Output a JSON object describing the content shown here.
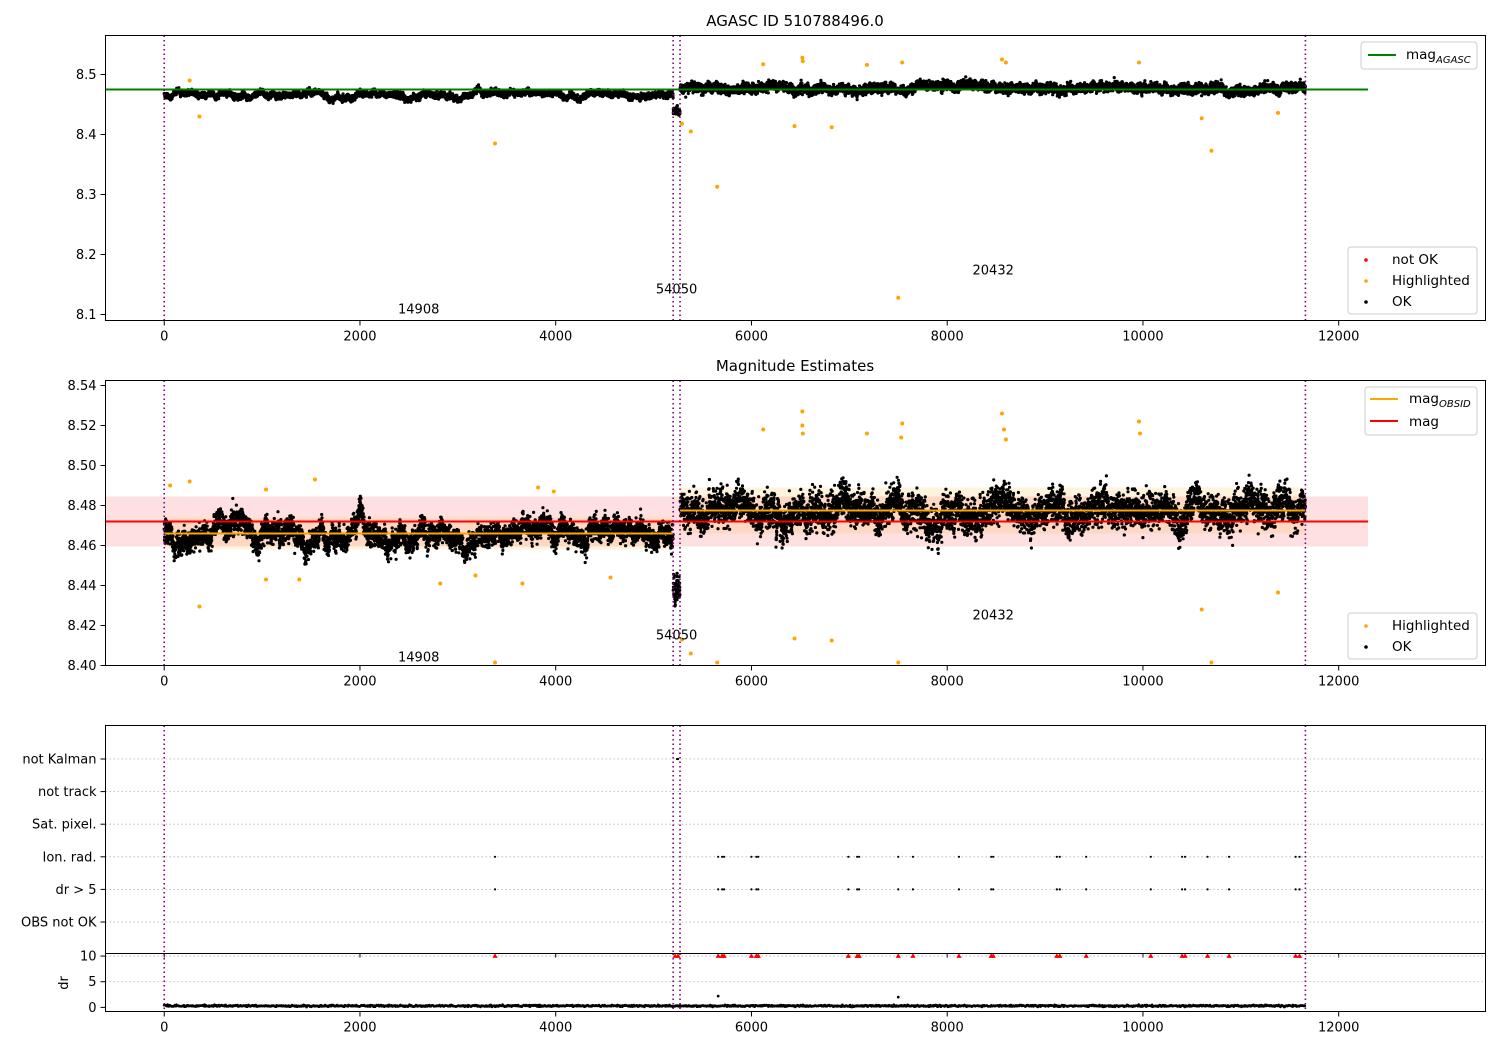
{
  "chart_data": [
    {
      "type": "scatter",
      "title": "AGASC ID 510788496.0",
      "xlim": [
        -600,
        13500
      ],
      "ylim": [
        8.09,
        8.565
      ],
      "xticks": [
        0,
        2000,
        4000,
        6000,
        8000,
        10000,
        12000
      ],
      "yticks": [
        8.1,
        8.2,
        8.3,
        8.4,
        8.5
      ],
      "ytick_decimals": 1,
      "grid": false,
      "legends": [
        {
          "placement": "top-right",
          "entries": [
            {
              "label": "mag",
              "sub": "AGASC",
              "kind": "line",
              "color": "#008000"
            }
          ]
        },
        {
          "placement": "bottom-right",
          "entries": [
            {
              "label": "not OK",
              "kind": "marker",
              "color": "#ff0000"
            },
            {
              "label": "Highlighted",
              "kind": "marker",
              "color": "#ffa500"
            },
            {
              "label": "OK",
              "kind": "marker",
              "color": "#000000"
            }
          ]
        }
      ],
      "reference_lines": [
        {
          "name": "mag_AGASC",
          "y": 8.475,
          "x": [
            -600,
            12300
          ],
          "color": "#008000"
        }
      ],
      "observation_boundaries": [
        0,
        5200,
        5270,
        11660
      ],
      "observations": [
        {
          "obsid": "14908",
          "x_range": [
            0,
            5200
          ],
          "mean": 8.466,
          "spread": 0.006,
          "label_at": [
            2600,
            8.11
          ]
        },
        {
          "obsid": "54050",
          "x_range": [
            5200,
            5270
          ],
          "mean": 8.44,
          "spread": 0.008,
          "label_at": [
            5235,
            8.143
          ]
        },
        {
          "obsid": "20432",
          "x_range": [
            5270,
            11660
          ],
          "mean": 8.477,
          "spread": 0.01,
          "label_at": [
            8470,
            8.175
          ]
        }
      ],
      "highlighted_points": [
        {
          "x": 360,
          "y": 8.43
        },
        {
          "x": 3380,
          "y": 8.385
        },
        {
          "x": 5290,
          "y": 8.418
        },
        {
          "x": 5380,
          "y": 8.405
        },
        {
          "x": 5650,
          "y": 8.313
        },
        {
          "x": 6440,
          "y": 8.414
        },
        {
          "x": 6820,
          "y": 8.412
        },
        {
          "x": 7500,
          "y": 8.128
        },
        {
          "x": 10600,
          "y": 8.427
        },
        {
          "x": 10700,
          "y": 8.373
        },
        {
          "x": 11380,
          "y": 8.436
        },
        {
          "x": 6520,
          "y": 8.528
        },
        {
          "x": 6525,
          "y": 8.522
        },
        {
          "x": 7540,
          "y": 8.52
        },
        {
          "x": 8560,
          "y": 8.525
        },
        {
          "x": 8600,
          "y": 8.52
        },
        {
          "x": 9960,
          "y": 8.52
        },
        {
          "x": 6120,
          "y": 8.517
        },
        {
          "x": 7180,
          "y": 8.516
        },
        {
          "x": 260,
          "y": 8.49
        }
      ]
    },
    {
      "type": "scatter",
      "title": "Magnitude Estimates",
      "xlim": [
        -600,
        13500
      ],
      "ylim": [
        8.4,
        8.5425
      ],
      "xticks": [
        0,
        2000,
        4000,
        6000,
        8000,
        10000,
        12000
      ],
      "yticks": [
        8.4,
        8.42,
        8.44,
        8.46,
        8.48,
        8.5,
        8.52,
        8.54
      ],
      "ytick_decimals": 2,
      "grid": false,
      "legends": [
        {
          "placement": "top-right",
          "entries": [
            {
              "label": "mag",
              "sub": "OBSID",
              "kind": "line",
              "color": "#ffa500"
            },
            {
              "label": "mag",
              "kind": "line",
              "color": "#ff0000"
            }
          ]
        },
        {
          "placement": "bottom-right",
          "entries": [
            {
              "label": "Highlighted",
              "kind": "marker",
              "color": "#ffa500"
            },
            {
              "label": "OK",
              "kind": "marker",
              "color": "#000000"
            }
          ]
        }
      ],
      "reference_lines": [
        {
          "name": "mag",
          "y": 8.472,
          "x": [
            -600,
            12300
          ],
          "color": "#ff0000",
          "band": [
            8.4595,
            8.4845
          ]
        },
        {
          "name": "mag_OBSID 14908",
          "y": 8.466,
          "x": [
            0,
            5200
          ],
          "color": "#ffa500",
          "band": [
            8.458,
            8.474
          ]
        },
        {
          "name": "mag_OBSID 20432",
          "y": 8.4775,
          "x": [
            5270,
            11660
          ],
          "color": "#ffa500",
          "band": [
            8.466,
            8.489
          ]
        }
      ],
      "observation_boundaries": [
        0,
        5200,
        5270,
        11660
      ],
      "observations": [
        {
          "obsid": "14908",
          "x_range": [
            0,
            5200
          ],
          "mean": 8.466,
          "spread": 0.007,
          "label_at": [
            2600,
            8.4045
          ]
        },
        {
          "obsid": "54050",
          "x_range": [
            5200,
            5270
          ],
          "mean": 8.44,
          "spread": 0.009,
          "label_at": [
            5235,
            8.4155
          ]
        },
        {
          "obsid": "20432",
          "x_range": [
            5270,
            11660
          ],
          "mean": 8.477,
          "spread": 0.011,
          "label_at": [
            8470,
            8.4255
          ]
        }
      ],
      "highlighted_points": [
        {
          "x": 360,
          "y": 8.4295
        },
        {
          "x": 5290,
          "y": 8.413
        },
        {
          "x": 5380,
          "y": 8.406
        },
        {
          "x": 6440,
          "y": 8.4135
        },
        {
          "x": 6820,
          "y": 8.4125
        },
        {
          "x": 10600,
          "y": 8.428
        },
        {
          "x": 11380,
          "y": 8.4365
        },
        {
          "x": 3380,
          "y": 8.4015
        },
        {
          "x": 5650,
          "y": 8.4015
        },
        {
          "x": 7500,
          "y": 8.4015
        },
        {
          "x": 10700,
          "y": 8.4015
        },
        {
          "x": 6520,
          "y": 8.527
        },
        {
          "x": 6520,
          "y": 8.52
        },
        {
          "x": 6525,
          "y": 8.516
        },
        {
          "x": 7540,
          "y": 8.521
        },
        {
          "x": 7530,
          "y": 8.514
        },
        {
          "x": 8560,
          "y": 8.526
        },
        {
          "x": 8580,
          "y": 8.518
        },
        {
          "x": 8600,
          "y": 8.513
        },
        {
          "x": 9960,
          "y": 8.522
        },
        {
          "x": 9970,
          "y": 8.516
        },
        {
          "x": 6120,
          "y": 8.518
        },
        {
          "x": 7180,
          "y": 8.516
        },
        {
          "x": 60,
          "y": 8.49
        },
        {
          "x": 260,
          "y": 8.492
        },
        {
          "x": 1040,
          "y": 8.488
        },
        {
          "x": 1540,
          "y": 8.493
        },
        {
          "x": 1040,
          "y": 8.443
        },
        {
          "x": 1380,
          "y": 8.443
        },
        {
          "x": 2820,
          "y": 8.441
        },
        {
          "x": 3660,
          "y": 8.441
        },
        {
          "x": 4560,
          "y": 8.444
        },
        {
          "x": 3180,
          "y": 8.445
        },
        {
          "x": 3820,
          "y": 8.489
        },
        {
          "x": 3980,
          "y": 8.487
        }
      ]
    },
    {
      "type": "scatter",
      "title": "",
      "xlim": [
        -600,
        13500
      ],
      "categories": [
        "not Kalman",
        "not track",
        "Sat. pixel.",
        "Ion. rad.",
        "dr > 5",
        "OBS not OK"
      ],
      "flag_events": {
        "not Kalman": [
          5240,
          5250
        ],
        "not track": [],
        "Sat. pixel.": [],
        "Ion. rad.": [
          3380,
          5660,
          5700,
          5720,
          6000,
          6050,
          6070,
          6990,
          7080,
          7100,
          7500,
          7650,
          8120,
          8450,
          8470,
          9120,
          9150,
          9420,
          10080,
          10400,
          10430,
          10660,
          10880,
          11560,
          11600
        ],
        "dr > 5": [
          3380,
          5660,
          5700,
          5720,
          6000,
          6050,
          6070,
          6990,
          7080,
          7100,
          7500,
          7650,
          8120,
          8450,
          8470,
          9120,
          9150,
          9420,
          10080,
          10400,
          10430,
          10660,
          10880,
          11560,
          11600
        ],
        "OBS not OK": []
      },
      "observation_boundaries": [
        0,
        5200,
        5270,
        11660
      ],
      "grid": "horizontal dotted"
    },
    {
      "type": "scatter",
      "title": "",
      "xlim": [
        -600,
        13500
      ],
      "ylim": [
        -0.8,
        10.5
      ],
      "xticks": [
        0,
        2000,
        4000,
        6000,
        8000,
        10000,
        12000
      ],
      "yticks": [
        0,
        5,
        10
      ],
      "ylabel": "dr",
      "grid": "horizontal dotted",
      "series": [
        {
          "name": "not OK",
          "color": "#ff0000",
          "marker": "triangle-up",
          "y": 10,
          "x": [
            3380,
            5220,
            5250,
            5660,
            5700,
            5720,
            6000,
            6050,
            6070,
            6990,
            7080,
            7100,
            7500,
            7650,
            8120,
            8450,
            8470,
            9120,
            9150,
            9420,
            10080,
            10400,
            10430,
            10660,
            10880,
            11560,
            11600
          ]
        },
        {
          "name": "OK",
          "color": "#000000",
          "marker": "dot",
          "y_typical": 0.3,
          "outliers": [
            {
              "x": 5660,
              "y": 2.2
            },
            {
              "x": 7500,
              "y": 2.0
            }
          ]
        }
      ],
      "observation_boundaries": [
        0,
        5200,
        5270,
        11660
      ]
    }
  ]
}
